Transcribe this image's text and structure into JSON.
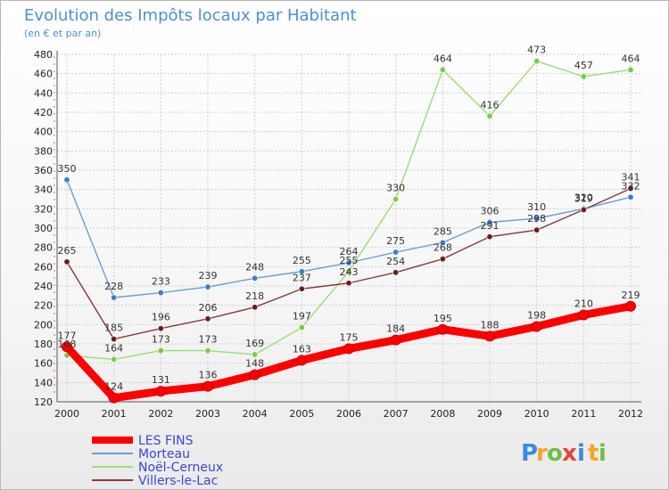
{
  "colors": {
    "title": "#4a90d9",
    "grid": "#d0d0d0",
    "axis": "#555555",
    "legend_text": "#3a46d6"
  },
  "chart_data": {
    "type": "line",
    "title": "Evolution des Impôts locaux par Habitant",
    "subtitle": "(en € et par an)",
    "x": [
      2000,
      2001,
      2002,
      2003,
      2004,
      2005,
      2006,
      2007,
      2008,
      2009,
      2010,
      2011,
      2012
    ],
    "ylim": [
      120,
      480
    ],
    "yticks": [
      120,
      140,
      160,
      180,
      200,
      220,
      240,
      260,
      280,
      300,
      320,
      340,
      360,
      380,
      400,
      420,
      440,
      460,
      480
    ],
    "grid": true,
    "legend_position": "bottom-left",
    "series": [
      {
        "name": "Morteau",
        "color": "#6a9fd0",
        "marker": "#3a7fc8",
        "values": [
          350,
          228,
          233,
          239,
          248,
          255,
          264,
          275,
          285,
          306,
          310,
          320,
          332
        ]
      },
      {
        "name": "Noël-Cerneux",
        "color": "#99dd77",
        "marker": "#77cc44",
        "values": [
          168,
          164,
          173,
          173,
          169,
          197,
          255,
          330,
          464,
          416,
          473,
          457,
          464
        ]
      },
      {
        "name": "Villers-le-Lac",
        "color": "#8a3a3a",
        "marker": "#6b1e1e",
        "values": [
          265,
          185,
          196,
          206,
          218,
          237,
          243,
          254,
          268,
          291,
          298,
          319,
          341
        ]
      },
      {
        "name": "LES FINS",
        "color": "#ff0000",
        "marker": "#ff0000",
        "values": [
          177,
          124,
          131,
          136,
          148,
          163,
          175,
          184,
          195,
          188,
          198,
          210,
          219
        ]
      }
    ]
  },
  "logo": {
    "letters": [
      "P",
      "r",
      "o",
      "x",
      "i",
      "t",
      "i"
    ]
  }
}
